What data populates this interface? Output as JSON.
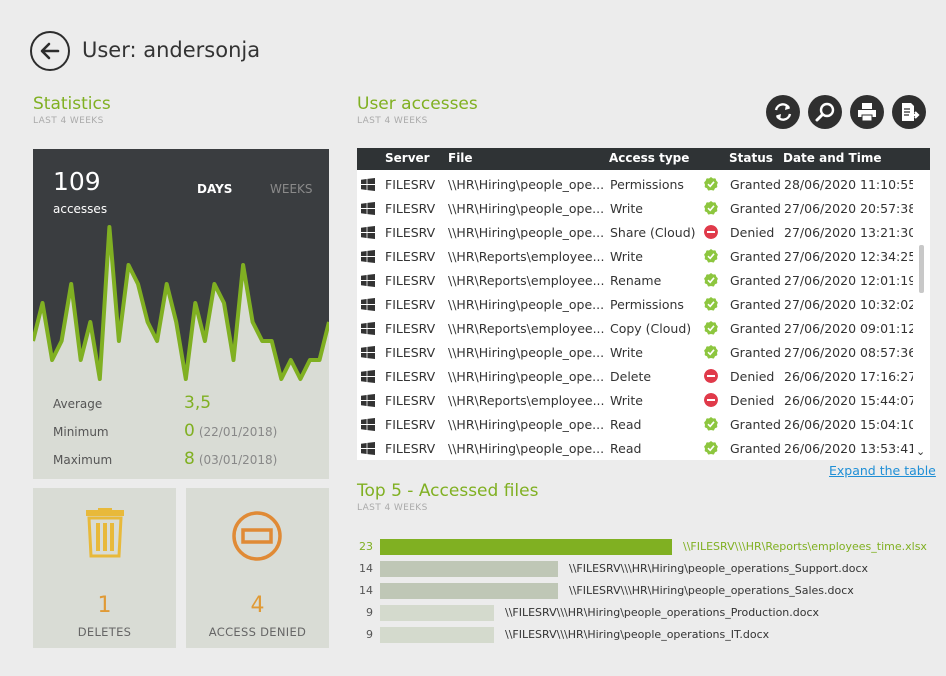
{
  "header": {
    "title": "User: andersonja"
  },
  "statistics": {
    "title": "Statistics",
    "subtitle": "LAST 4 WEEKS",
    "count": "109",
    "count_label": "accesses",
    "toggle_days": "DAYS",
    "toggle_weeks": "WEEKS",
    "average_label": "Average",
    "average_value": "3,5",
    "minimum_label": "Minimum",
    "minimum_value": "0",
    "minimum_date": "(22/01/2018)",
    "maximum_label": "Maximum",
    "maximum_value": "8",
    "maximum_date": "(03/01/2018)",
    "series": [
      2,
      4,
      1,
      2,
      5,
      1,
      3,
      0,
      8,
      2,
      6,
      5,
      3,
      2,
      5,
      3,
      0,
      4,
      2,
      5,
      4,
      1,
      6,
      3,
      2,
      2,
      0,
      1,
      0,
      1,
      1,
      3
    ]
  },
  "cards": {
    "deletes_value": "1",
    "deletes_label": "DELETES",
    "denied_value": "4",
    "denied_label": "ACCESS DENIED"
  },
  "accesses": {
    "title": "User accesses",
    "subtitle": "LAST 4 WEEKS",
    "columns": {
      "server": "Server",
      "file": "File",
      "access_type": "Access type",
      "status": "Status",
      "datetime": "Date and Time"
    },
    "rows": [
      {
        "server": "FILESRV",
        "file": "\\\\HR\\Hiring\\people_ope...",
        "type": "Permissions",
        "status": "Granted",
        "dt": "28/06/2020 11:10:55"
      },
      {
        "server": "FILESRV",
        "file": "\\\\HR\\Hiring\\people_ope...",
        "type": "Write",
        "status": "Granted",
        "dt": "27/06/2020 20:57:38"
      },
      {
        "server": "FILESRV",
        "file": "\\\\HR\\Hiring\\people_ope...",
        "type": "Share (Cloud)",
        "status": "Denied",
        "dt": "27/06/2020 13:21:30"
      },
      {
        "server": "FILESRV",
        "file": "\\\\HR\\Reports\\employee...",
        "type": "Write",
        "status": "Granted",
        "dt": "27/06/2020 12:34:25"
      },
      {
        "server": "FILESRV",
        "file": "\\\\HR\\Reports\\employee...",
        "type": "Rename",
        "status": "Granted",
        "dt": "27/06/2020 12:01:19"
      },
      {
        "server": "FILESRV",
        "file": "\\\\HR\\Hiring\\people_ope...",
        "type": "Permissions",
        "status": "Granted",
        "dt": "27/06/2020 10:32:02"
      },
      {
        "server": "FILESRV",
        "file": "\\\\HR\\Reports\\employee...",
        "type": "Copy (Cloud)",
        "status": "Granted",
        "dt": "27/06/2020 09:01:12"
      },
      {
        "server": "FILESRV",
        "file": "\\\\HR\\Hiring\\people_ope...",
        "type": "Write",
        "status": "Granted",
        "dt": "27/06/2020 08:57:36"
      },
      {
        "server": "FILESRV",
        "file": "\\\\HR\\Hiring\\people_ope...",
        "type": "Delete",
        "status": "Denied",
        "dt": "26/06/2020 17:16:27"
      },
      {
        "server": "FILESRV",
        "file": "\\\\HR\\Reports\\employee...",
        "type": "Write",
        "status": "Denied",
        "dt": "26/06/2020 15:44:07"
      },
      {
        "server": "FILESRV",
        "file": "\\\\HR\\Hiring\\people_ope...",
        "type": "Read",
        "status": "Granted",
        "dt": "26/06/2020 15:04:10"
      },
      {
        "server": "FILESRV",
        "file": "\\\\HR\\Hiring\\people_ope...",
        "type": "Read",
        "status": "Granted",
        "dt": "26/06/2020 13:53:41"
      }
    ],
    "expand_label": "Expand the table"
  },
  "top_files": {
    "title": "Top 5 - Accessed files",
    "subtitle": "LAST 4 WEEKS",
    "items": [
      {
        "count": "23",
        "path": "\\\\FILESRV\\\\\\HR\\Reports\\employees_time.xlsx",
        "value": 23
      },
      {
        "count": "14",
        "path": "\\\\FILESRV\\\\\\HR\\Hiring\\people_operations_Support.docx",
        "value": 14
      },
      {
        "count": "14",
        "path": "\\\\FILESRV\\\\\\HR\\Hiring\\people_operations_Sales.docx",
        "value": 14
      },
      {
        "count": "9",
        "path": "\\\\FILESRV\\\\\\HR\\Hiring\\people_operations_Production.docx",
        "value": 9
      },
      {
        "count": "9",
        "path": "\\\\FILESRV\\\\\\HR\\Hiring\\people_operations_IT.docx",
        "value": 9
      }
    ]
  },
  "colors": {
    "accent": "#80b022",
    "orange": "#e09a35",
    "granted": "#8dc63f",
    "denied": "#e03a4a",
    "dark": "#3a3d40"
  },
  "icons": [
    "back-arrow-icon",
    "refresh-icon",
    "search-icon",
    "print-icon",
    "export-icon",
    "trash-icon",
    "no-entry-icon",
    "windows-icon",
    "check-icon",
    "denied-icon"
  ]
}
